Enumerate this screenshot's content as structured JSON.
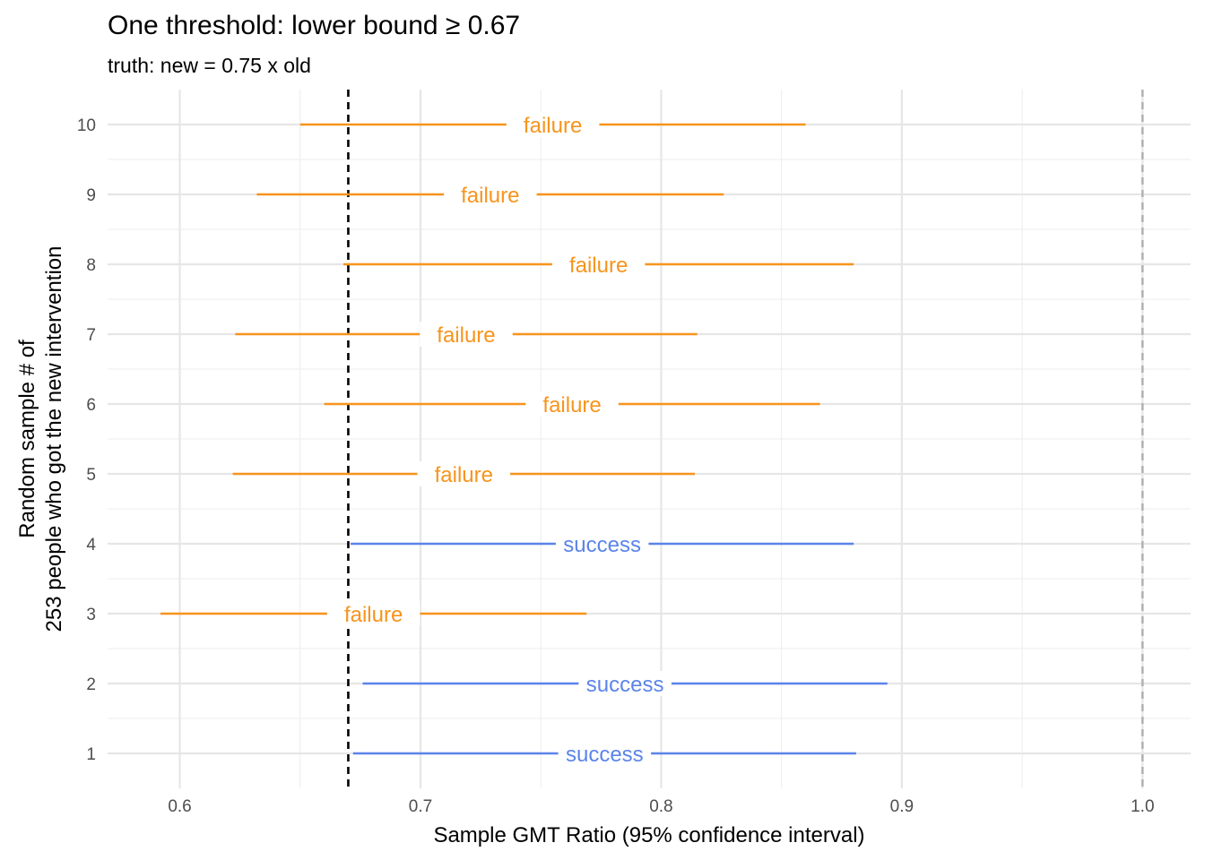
{
  "chart_data": {
    "type": "scatter",
    "title": "One threshold: lower bound ≥ 0.67",
    "subtitle": "truth: new = 0.75 x old",
    "xlabel": "Sample GMT Ratio (95% confidence interval)",
    "ylabel_lines": [
      "Random sample # of",
      "253 people who got the new intervention"
    ],
    "xlim": [
      0.57,
      1.02
    ],
    "ylim": [
      0.5,
      10.5
    ],
    "x_ticks": [
      0.6,
      0.7,
      0.8,
      0.9,
      1.0
    ],
    "x_tick_labels": [
      "0.6",
      "0.7",
      "0.8",
      "0.9",
      "1.0"
    ],
    "y_ticks": [
      1,
      2,
      3,
      4,
      5,
      6,
      7,
      8,
      9,
      10
    ],
    "y_tick_labels": [
      "1",
      "2",
      "3",
      "4",
      "5",
      "6",
      "7",
      "8",
      "9",
      "10"
    ],
    "grid": true,
    "reference_lines": [
      {
        "x": 0.67,
        "style": "dashed",
        "color": "#000000"
      },
      {
        "x": 1.0,
        "style": "dashed",
        "color": "#b3b3b3"
      }
    ],
    "colors": {
      "failure": "#F7941D",
      "success": "#5B84E9"
    },
    "points": [
      {
        "sample": 1,
        "estimate": 0.77,
        "lower": 0.672,
        "upper": 0.881,
        "outcome": "success"
      },
      {
        "sample": 2,
        "estimate": 0.778,
        "lower": 0.676,
        "upper": 0.894,
        "outcome": "success"
      },
      {
        "sample": 3,
        "estimate": 0.674,
        "lower": 0.592,
        "upper": 0.769,
        "outcome": "failure"
      },
      {
        "sample": 4,
        "estimate": 0.769,
        "lower": 0.671,
        "upper": 0.88,
        "outcome": "success"
      },
      {
        "sample": 5,
        "estimate": 0.712,
        "lower": 0.622,
        "upper": 0.814,
        "outcome": "failure"
      },
      {
        "sample": 6,
        "estimate": 0.756,
        "lower": 0.66,
        "upper": 0.866,
        "outcome": "failure"
      },
      {
        "sample": 7,
        "estimate": 0.713,
        "lower": 0.623,
        "upper": 0.815,
        "outcome": "failure"
      },
      {
        "sample": 8,
        "estimate": 0.766,
        "lower": 0.668,
        "upper": 0.88,
        "outcome": "failure"
      },
      {
        "sample": 9,
        "estimate": 0.722,
        "lower": 0.632,
        "upper": 0.826,
        "outcome": "failure"
      },
      {
        "sample": 10,
        "estimate": 0.748,
        "lower": 0.65,
        "upper": 0.86,
        "outcome": "failure"
      }
    ]
  }
}
